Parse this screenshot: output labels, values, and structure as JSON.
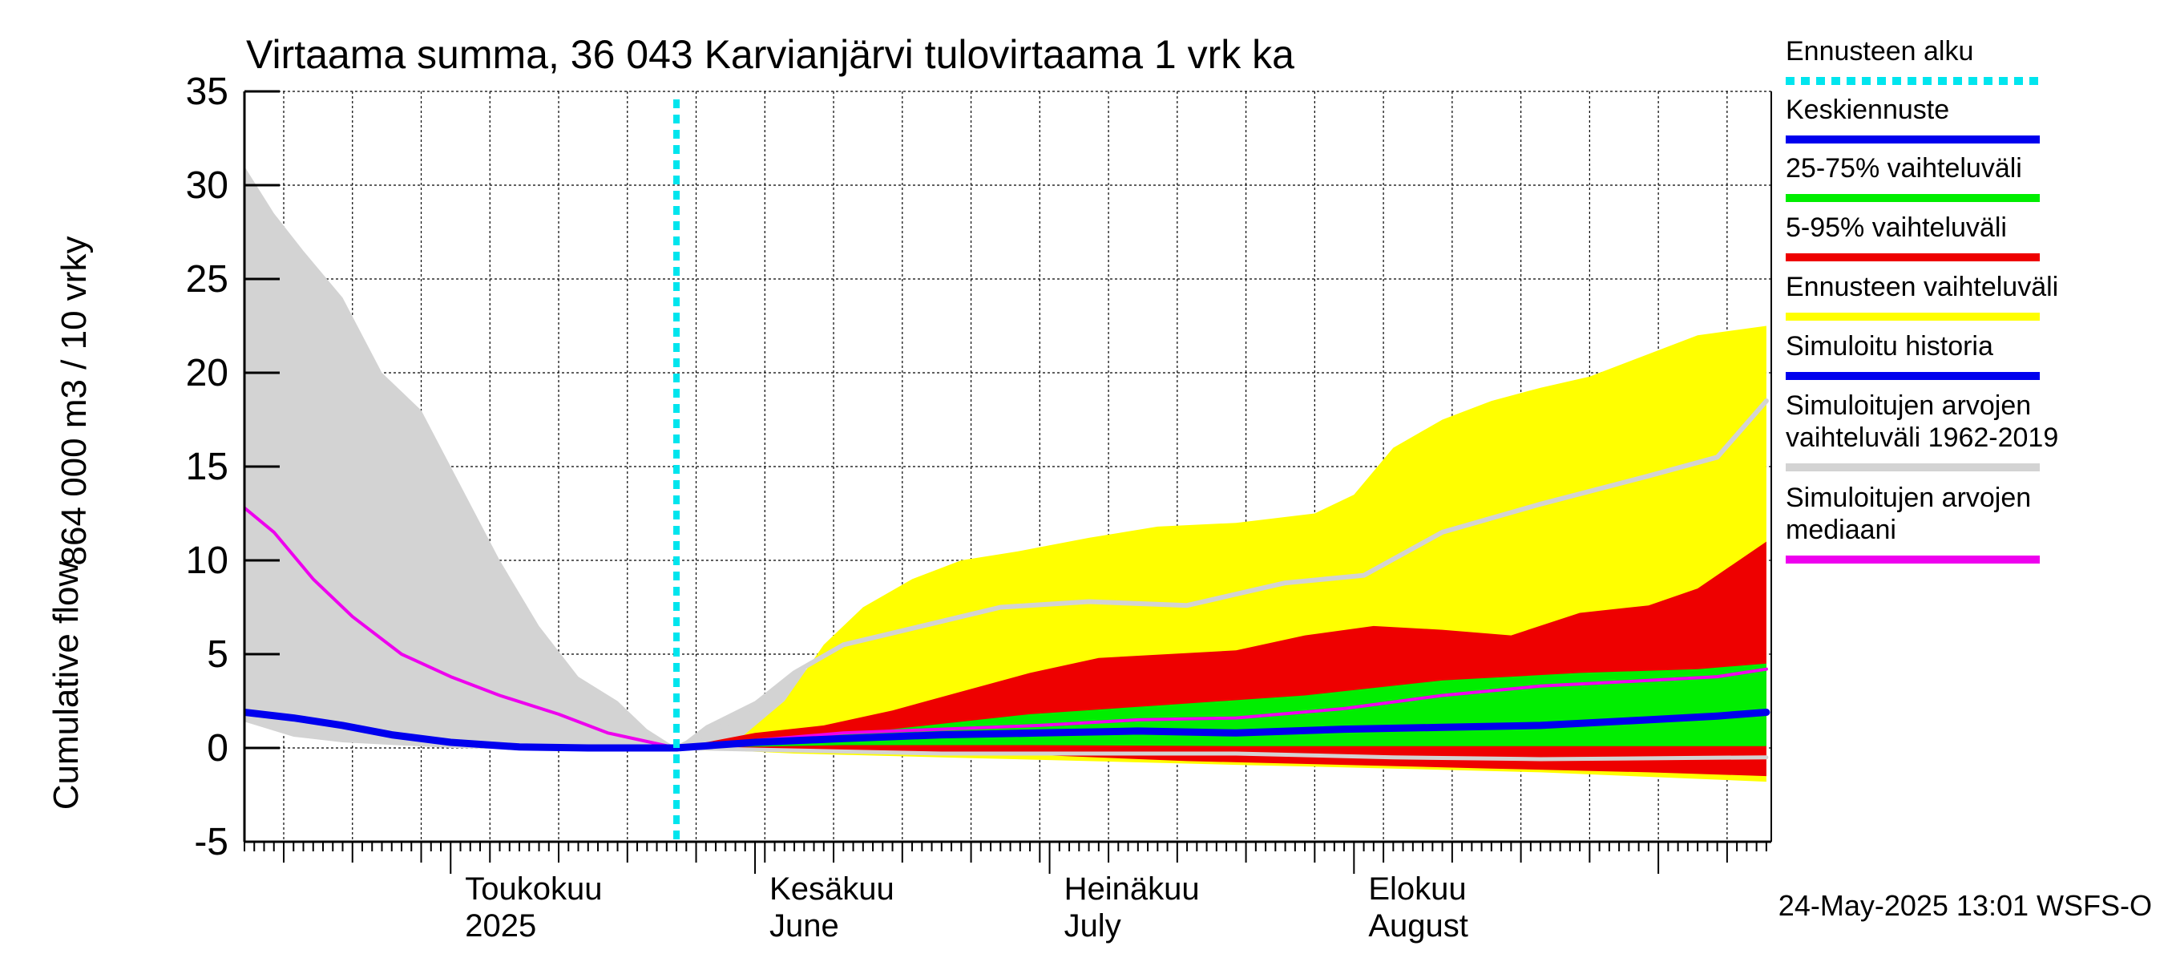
{
  "chart_data": {
    "type": "area",
    "title": "Virtaama summa, 36 043 Karvianjärvi tulovirtaama 1 vrk ka",
    "ylabel_line1": "864 000 m3 / 10 vrky",
    "ylabel_line2": "Cumulative flow",
    "ylim": [
      -5,
      35
    ],
    "yticks": [
      -5,
      0,
      5,
      10,
      15,
      20,
      25,
      30,
      35
    ],
    "x_start": "2025-04-10",
    "x_end": "2025-08-31",
    "forecast_start": "2025-05-24",
    "month_labels": [
      {
        "date": "2025-05-01",
        "line1": "Toukokuu",
        "line2": "2025"
      },
      {
        "date": "2025-06-01",
        "line1": "Kesäkuu",
        "line2": "June"
      },
      {
        "date": "2025-07-01",
        "line1": "Heinäkuu",
        "line2": "July"
      },
      {
        "date": "2025-08-01",
        "line1": "Elokuu",
        "line2": "August"
      }
    ],
    "legend": [
      {
        "label": "Ennusteen alku",
        "color": "#00e5ee",
        "style": "dotted"
      },
      {
        "label": "Keskiennuste",
        "color": "#0000ee",
        "style": "line"
      },
      {
        "label": "25-75% vaihteluväli",
        "color": "#00ee00",
        "style": "line"
      },
      {
        "label": "5-95% vaihteluväli",
        "color": "#ee0000",
        "style": "line"
      },
      {
        "label": "Ennusteen vaihteluväli",
        "color": "#ffff00",
        "style": "line"
      },
      {
        "label": "Simuloitu historia",
        "color": "#0000ee",
        "style": "line"
      },
      {
        "label": "Simuloitujen arvojen\nvaihteluväli 1962-2019",
        "color": "#d3d3d3",
        "style": "line"
      },
      {
        "label": "Simuloitujen arvojen\nmediaani",
        "color": "#ee00ee",
        "style": "line"
      }
    ],
    "timestamp": "24-May-2025 13:01 WSFS-O",
    "series": {
      "hist_range_upper": [
        [
          "2025-04-10",
          31.0
        ],
        [
          "2025-04-13",
          28.5
        ],
        [
          "2025-04-16",
          26.5
        ],
        [
          "2025-04-20",
          24.0
        ],
        [
          "2025-04-24",
          20.0
        ],
        [
          "2025-04-28",
          18.0
        ],
        [
          "2025-05-02",
          14.0
        ],
        [
          "2025-05-06",
          10.0
        ],
        [
          "2025-05-10",
          6.5
        ],
        [
          "2025-05-14",
          3.8
        ],
        [
          "2025-05-18",
          2.5
        ],
        [
          "2025-05-21",
          1.0
        ],
        [
          "2025-05-24",
          0.0
        ],
        [
          "2025-05-27",
          1.2
        ],
        [
          "2025-06-01",
          2.5
        ],
        [
          "2025-06-05",
          4.0
        ],
        [
          "2025-06-08",
          4.5
        ]
      ],
      "hist_range_lower": [
        [
          "2025-04-10",
          1.4
        ],
        [
          "2025-04-15",
          0.6
        ],
        [
          "2025-04-20",
          0.3
        ],
        [
          "2025-05-01",
          0.0
        ],
        [
          "2025-05-10",
          -0.1
        ],
        [
          "2025-05-20",
          -0.1
        ],
        [
          "2025-05-24",
          0.0
        ],
        [
          "2025-06-01",
          -0.1
        ],
        [
          "2025-06-08",
          -0.3
        ]
      ],
      "forecast_range_upper": [
        [
          "2025-05-24",
          0.0
        ],
        [
          "2025-05-30",
          0.3
        ],
        [
          "2025-06-04",
          2.5
        ],
        [
          "2025-06-08",
          5.5
        ],
        [
          "2025-06-12",
          7.5
        ],
        [
          "2025-06-17",
          9.0
        ],
        [
          "2025-06-22",
          10.0
        ],
        [
          "2025-06-28",
          10.5
        ],
        [
          "2025-07-05",
          11.2
        ],
        [
          "2025-07-12",
          11.8
        ],
        [
          "2025-07-20",
          12.0
        ],
        [
          "2025-07-28",
          12.5
        ],
        [
          "2025-08-01",
          13.5
        ],
        [
          "2025-08-05",
          16.0
        ],
        [
          "2025-08-10",
          17.5
        ],
        [
          "2025-08-15",
          18.5
        ],
        [
          "2025-08-20",
          19.2
        ],
        [
          "2025-08-25",
          19.8
        ],
        [
          "2025-08-31",
          21.0
        ],
        [
          "2025-09-05",
          22.0
        ],
        [
          "2025-09-12",
          22.5
        ]
      ],
      "forecast_range_lower": [
        [
          "2025-05-24",
          0.0
        ],
        [
          "2025-06-05",
          -0.3
        ],
        [
          "2025-06-20",
          -0.5
        ],
        [
          "2025-07-05",
          -0.7
        ],
        [
          "2025-07-20",
          -0.9
        ],
        [
          "2025-08-05",
          -1.1
        ],
        [
          "2025-08-20",
          -1.3
        ],
        [
          "2025-09-12",
          -1.8
        ]
      ],
      "p95_upper": [
        [
          "2025-05-24",
          0.0
        ],
        [
          "2025-06-01",
          0.8
        ],
        [
          "2025-06-08",
          1.2
        ],
        [
          "2025-06-15",
          2.0
        ],
        [
          "2025-06-22",
          3.0
        ],
        [
          "2025-06-29",
          4.0
        ],
        [
          "2025-07-06",
          4.8
        ],
        [
          "2025-07-13",
          5.0
        ],
        [
          "2025-07-20",
          5.2
        ],
        [
          "2025-07-27",
          6.0
        ],
        [
          "2025-08-03",
          6.5
        ],
        [
          "2025-08-10",
          6.3
        ],
        [
          "2025-08-17",
          6.0
        ],
        [
          "2025-08-24",
          7.2
        ],
        [
          "2025-08-31",
          7.6
        ],
        [
          "2025-09-05",
          8.5
        ],
        [
          "2025-09-12",
          11.0
        ]
      ],
      "p5_lower": [
        [
          "2025-05-24",
          0.0
        ],
        [
          "2025-06-05",
          -0.1
        ],
        [
          "2025-06-20",
          -0.2
        ],
        [
          "2025-07-01",
          -0.4
        ],
        [
          "2025-07-15",
          -0.7
        ],
        [
          "2025-07-31",
          -0.9
        ],
        [
          "2025-08-15",
          -1.1
        ],
        [
          "2025-08-31",
          -1.3
        ],
        [
          "2025-09-12",
          -1.5
        ]
      ],
      "p75_upper": [
        [
          "2025-05-24",
          0.0
        ],
        [
          "2025-06-05",
          0.5
        ],
        [
          "2025-06-15",
          1.0
        ],
        [
          "2025-06-29",
          1.8
        ],
        [
          "2025-07-13",
          2.3
        ],
        [
          "2025-07-27",
          2.8
        ],
        [
          "2025-08-10",
          3.6
        ],
        [
          "2025-08-24",
          4.0
        ],
        [
          "2025-09-05",
          4.2
        ],
        [
          "2025-09-12",
          4.5
        ]
      ],
      "p25_lower": [
        [
          "2025-05-24",
          0.0
        ],
        [
          "2025-06-10",
          0.15
        ],
        [
          "2025-06-29",
          0.15
        ],
        [
          "2025-07-20",
          0.1
        ],
        [
          "2025-08-10",
          0.1
        ],
        [
          "2025-08-31",
          0.1
        ],
        [
          "2025-09-12",
          0.1
        ]
      ],
      "hist_range_median_grey": [
        [
          "2025-05-24",
          0.0
        ],
        [
          "2025-05-30",
          1.5
        ],
        [
          "2025-06-05",
          4.0
        ],
        [
          "2025-06-10",
          5.5
        ],
        [
          "2025-06-18",
          6.5
        ],
        [
          "2025-06-26",
          7.5
        ],
        [
          "2025-07-05",
          7.8
        ],
        [
          "2025-07-15",
          7.6
        ],
        [
          "2025-07-25",
          8.8
        ],
        [
          "2025-08-02",
          9.2
        ],
        [
          "2025-08-10",
          11.5
        ],
        [
          "2025-08-20",
          13.0
        ],
        [
          "2025-08-31",
          14.5
        ],
        [
          "2025-09-07",
          15.5
        ],
        [
          "2025-09-12",
          18.5
        ]
      ],
      "lower_grey_line": [
        [
          "2025-05-24",
          0.0
        ],
        [
          "2025-06-20",
          -0.3
        ],
        [
          "2025-07-20",
          -0.3
        ],
        [
          "2025-08-05",
          -0.5
        ],
        [
          "2025-08-20",
          -0.6
        ],
        [
          "2025-09-12",
          -0.5
        ]
      ],
      "sim_median": [
        [
          "2025-04-10",
          12.8
        ],
        [
          "2025-04-13",
          11.5
        ],
        [
          "2025-04-17",
          9.0
        ],
        [
          "2025-04-21",
          7.0
        ],
        [
          "2025-04-26",
          5.0
        ],
        [
          "2025-05-01",
          3.8
        ],
        [
          "2025-05-06",
          2.8
        ],
        [
          "2025-05-12",
          1.8
        ],
        [
          "2025-05-17",
          0.8
        ],
        [
          "2025-05-24",
          0.0
        ],
        [
          "2025-06-01",
          0.4
        ],
        [
          "2025-06-10",
          0.8
        ],
        [
          "2025-06-20",
          1.0
        ],
        [
          "2025-06-30",
          1.2
        ],
        [
          "2025-07-10",
          1.5
        ],
        [
          "2025-07-20",
          1.6
        ],
        [
          "2025-07-31",
          2.1
        ],
        [
          "2025-08-10",
          2.8
        ],
        [
          "2025-08-20",
          3.3
        ],
        [
          "2025-08-31",
          3.6
        ],
        [
          "2025-09-07",
          3.8
        ],
        [
          "2025-09-12",
          4.2
        ]
      ],
      "sim_history": [
        [
          "2025-04-10",
          1.9
        ],
        [
          "2025-04-15",
          1.6
        ],
        [
          "2025-04-20",
          1.2
        ],
        [
          "2025-04-25",
          0.7
        ],
        [
          "2025-05-01",
          0.3
        ],
        [
          "2025-05-08",
          0.05
        ],
        [
          "2025-05-15",
          0.0
        ],
        [
          "2025-05-24",
          0.0
        ]
      ],
      "mean_forecast": [
        [
          "2025-05-24",
          0.0
        ],
        [
          "2025-06-01",
          0.3
        ],
        [
          "2025-06-10",
          0.5
        ],
        [
          "2025-06-20",
          0.7
        ],
        [
          "2025-06-30",
          0.8
        ],
        [
          "2025-07-10",
          0.9
        ],
        [
          "2025-07-20",
          0.8
        ],
        [
          "2025-07-31",
          1.0
        ],
        [
          "2025-08-10",
          1.1
        ],
        [
          "2025-08-20",
          1.2
        ],
        [
          "2025-08-31",
          1.5
        ],
        [
          "2025-09-07",
          1.7
        ],
        [
          "2025-09-12",
          1.9
        ]
      ]
    }
  }
}
